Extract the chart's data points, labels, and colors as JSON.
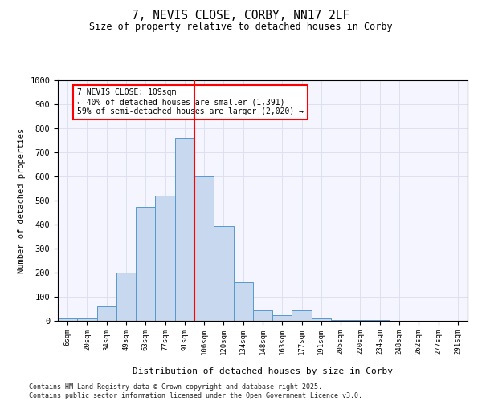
{
  "title1": "7, NEVIS CLOSE, CORBY, NN17 2LF",
  "title2": "Size of property relative to detached houses in Corby",
  "xlabel": "Distribution of detached houses by size in Corby",
  "ylabel": "Number of detached properties",
  "categories": [
    "6sqm",
    "20sqm",
    "34sqm",
    "49sqm",
    "63sqm",
    "77sqm",
    "91sqm",
    "106sqm",
    "120sqm",
    "134sqm",
    "148sqm",
    "163sqm",
    "177sqm",
    "191sqm",
    "205sqm",
    "220sqm",
    "234sqm",
    "248sqm",
    "262sqm",
    "277sqm",
    "291sqm"
  ],
  "values": [
    10,
    10,
    60,
    200,
    475,
    520,
    760,
    600,
    395,
    160,
    45,
    25,
    42,
    10,
    5,
    3,
    2,
    1,
    0,
    0,
    0
  ],
  "bar_color": "#c8d8ee",
  "bar_edge_color": "#5599cc",
  "vline_x_idx": 7,
  "vline_color": "red",
  "ylim": [
    0,
    1000
  ],
  "yticks": [
    0,
    100,
    200,
    300,
    400,
    500,
    600,
    700,
    800,
    900,
    1000
  ],
  "annotation_text": "7 NEVIS CLOSE: 109sqm\n← 40% of detached houses are smaller (1,391)\n59% of semi-detached houses are larger (2,020) →",
  "annotation_box_color": "red",
  "footer": "Contains HM Land Registry data © Crown copyright and database right 2025.\nContains public sector information licensed under the Open Government Licence v3.0.",
  "grid_color": "#dde0ee",
  "background_color": "#f5f5ff"
}
